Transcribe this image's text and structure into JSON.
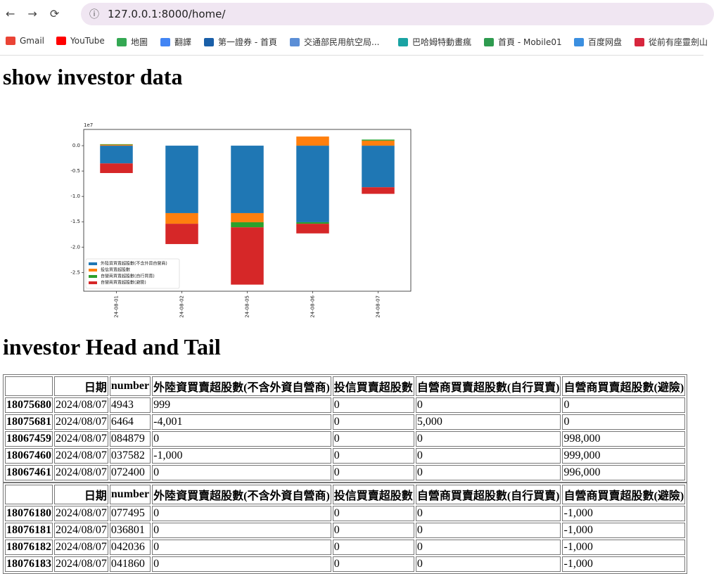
{
  "browser": {
    "url": "127.0.0.1:8000/home/",
    "bookmarks": [
      "Gmail",
      "YouTube",
      "地圖",
      "翻譯",
      "第一證券 - 首頁",
      "交通部民用航空局...",
      "巴哈姆特動畫瘋",
      "首頁 - Mobile01",
      "百度网盘",
      "從前有座靈劍山"
    ]
  },
  "headings": [
    "show investor data",
    "investor Head and Tail"
  ],
  "chart_data": {
    "type": "bar",
    "stacked": true,
    "y_offset_label": "1e7",
    "categories": [
      "24-08-01",
      "24-08-02",
      "24-08-05",
      "24-08-06",
      "24-08-07"
    ],
    "series": [
      {
        "name": "外陸資買賣超股數(不含外資自營商)",
        "color": "#1f77b4",
        "values": [
          -0.35,
          -1.33,
          -1.33,
          -1.51,
          -0.82
        ]
      },
      {
        "name": "投信買賣超股數",
        "color": "#ff7f0e",
        "values": [
          0.02,
          -0.21,
          -0.18,
          0.18,
          0.1
        ]
      },
      {
        "name": "自營商買賣超股數(自行買賣)",
        "color": "#2ca02c",
        "values": [
          0.01,
          0,
          -0.1,
          -0.03,
          0.02
        ]
      },
      {
        "name": "自營商買賣超股數(避險)",
        "color": "#d62728",
        "values": [
          -0.19,
          -0.4,
          -1.13,
          -0.19,
          -0.13
        ]
      }
    ],
    "ylim": [
      -2.87,
      0.32
    ],
    "yticks": [
      {
        "value": 0,
        "label": "0.0"
      },
      -0.5,
      {
        "value": -1,
        "label": "-1.0"
      },
      -1.5,
      {
        "value": -2,
        "label": "-2.0"
      },
      -2.5
    ],
    "legend": "lower left"
  },
  "tables": [
    {
      "columns": [
        "日期",
        "number",
        "外陸資買賣超股數(不含外資自營商)",
        "投信買賣超股數",
        "自營商買賣超股數(自行買賣)",
        "自營商買賣超股數(避險)"
      ],
      "rows": [
        [
          "18075680",
          "2024/08/07",
          "4943",
          "999",
          "0",
          "0",
          "0"
        ],
        [
          "18075681",
          "2024/08/07",
          "6464",
          "-4,001",
          "0",
          "5,000",
          "0"
        ],
        [
          "18067459",
          "2024/08/07",
          "084879",
          "0",
          "0",
          "0",
          "998,000"
        ],
        [
          "18067460",
          "2024/08/07",
          "037582",
          "-1,000",
          "0",
          "0",
          "999,000"
        ],
        [
          "18067461",
          "2024/08/07",
          "072400",
          "0",
          "0",
          "0",
          "996,000"
        ]
      ]
    },
    {
      "columns": [
        "日期",
        "number",
        "外陸資買賣超股數(不含外資自營商)",
        "投信買賣超股數",
        "自營商買賣超股數(自行買賣)",
        "自營商買賣超股數(避險)"
      ],
      "rows": [
        [
          "18076180",
          "2024/08/07",
          "077495",
          "0",
          "0",
          "0",
          "-1,000"
        ],
        [
          "18076181",
          "2024/08/07",
          "036801",
          "0",
          "0",
          "0",
          "-1,000"
        ],
        [
          "18076182",
          "2024/08/07",
          "042036",
          "0",
          "0",
          "0",
          "-1,000"
        ],
        [
          "18076183",
          "2024/08/07",
          "041860",
          "0",
          "0",
          "0",
          "-1,000"
        ]
      ]
    }
  ]
}
